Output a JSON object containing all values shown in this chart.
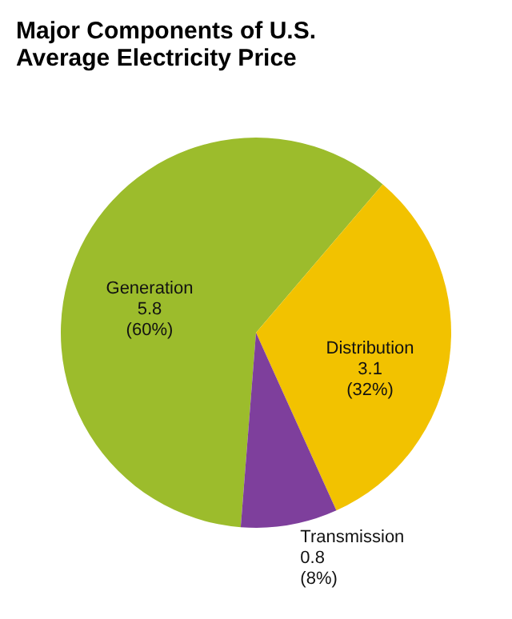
{
  "chart_data": {
    "type": "pie",
    "title": "Major Components of U.S. Average Electricity Price",
    "categories": [
      "Generation",
      "Distribution",
      "Transmission"
    ],
    "values": [
      60,
      32,
      8
    ],
    "value_labels": [
      "5.8\n(60%)",
      "3.1\n(32%)",
      "0.8\n(8%)"
    ],
    "colors": [
      "#9cbc2c",
      "#f2c200",
      "#7e3f9c"
    ],
    "legend": false
  }
}
